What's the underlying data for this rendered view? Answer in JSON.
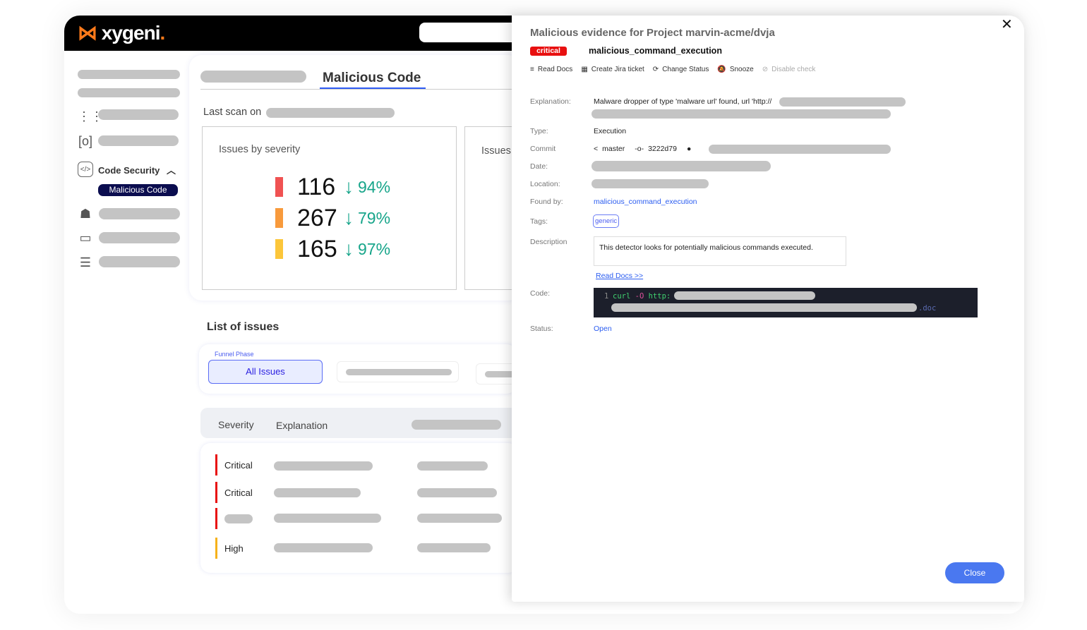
{
  "brand": {
    "name": "xygeni",
    "accent": "#ff7a1a"
  },
  "sidebar": {
    "section": "Code Security",
    "active_item": "Malicious Code",
    "active_color": "#0b0d4f"
  },
  "main": {
    "tab_active": "Malicious Code",
    "last_scan_label": "Last scan on",
    "issues_by_severity": {
      "title": "Issues by severity",
      "rows": [
        {
          "count": "116",
          "change": "94%",
          "color": "#f05252"
        },
        {
          "count": "267",
          "change": "79%",
          "color": "#f89a3c"
        },
        {
          "count": "165",
          "change": "97%",
          "color": "#fcc63a"
        }
      ]
    },
    "second_card_title": "Issues",
    "list_title": "List of issues",
    "funnel_label": "Funnel Phase",
    "funnel_selected": "All Issues",
    "table_headers": [
      "Severity",
      "Explanation"
    ],
    "rows": [
      {
        "severity": "Critical",
        "color": "#e81010"
      },
      {
        "severity": "Critical",
        "color": "#e81010"
      },
      {
        "severity": "",
        "color": "#e81010"
      },
      {
        "severity": "High",
        "color": "#f6b21a"
      }
    ]
  },
  "modal": {
    "title": "Malicious evidence for Project marvin-acme/dvja",
    "severity_badge": "critical",
    "detector": "malicious_command_execution",
    "actions": [
      "Read Docs",
      "Create Jira ticket",
      "Change Status",
      "Snooze",
      "Disable check"
    ],
    "fields": {
      "explanation_label": "Explanation:",
      "explanation": "Malware dropper of type 'malware url' found, url 'http://",
      "type_label": "Type:",
      "type": "Execution",
      "commit_label": "Commit",
      "branch": "master",
      "commit": "3222d79",
      "date_label": "Date:",
      "location_label": "Location:",
      "found_by_label": "Found by:",
      "found_by": "malicious_command_execution",
      "tags_label": "Tags:",
      "tag": "generic",
      "description_label": "Description",
      "description": "This detector looks for potentially malicious commands executed.",
      "read_docs_link": "Read Docs >>",
      "code_label": "Code:",
      "code_line_no": "1",
      "code_cmd": "curl",
      "code_flag": "-O",
      "code_proto": "http:",
      "code_suffix": ".doc",
      "status_label": "Status:",
      "status": "Open"
    },
    "close_label": "Close"
  }
}
